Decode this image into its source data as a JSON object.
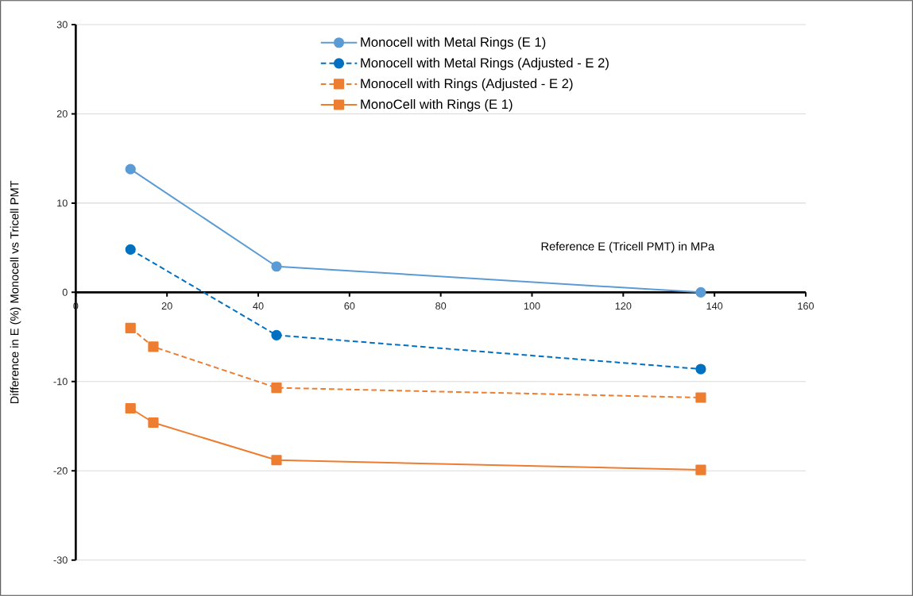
{
  "chart_data": {
    "type": "line",
    "xlabel": "Reference E (Tricell PMT) in MPa",
    "ylabel": "Difference in E (%) Monocell vs Tricell PMT",
    "xlim": [
      0,
      160
    ],
    "xticks": [
      0,
      20,
      40,
      60,
      80,
      100,
      120,
      140,
      160
    ],
    "ylim": [
      -30,
      30
    ],
    "yticks": [
      -30,
      -20,
      -10,
      0,
      10,
      20,
      30
    ],
    "grid": "y",
    "legend": "top",
    "series": [
      {
        "name": "Monocell with Metal Rings (E 1)",
        "color": "#5b9bd5",
        "marker": "circle",
        "line_style": "solid",
        "x": [
          12,
          44,
          137
        ],
        "values": [
          13.8,
          2.9,
          0
        ]
      },
      {
        "name": "Monocell with Metal Rings (Adjusted - E 2)",
        "color": "#0070c0",
        "marker": "circle",
        "line_style": "dashed",
        "x": [
          12,
          44,
          137
        ],
        "values": [
          4.8,
          -4.8,
          -8.6
        ]
      },
      {
        "name": "Monocell with Rings (Adjusted - E 2)",
        "color": "#ed7d31",
        "marker": "square",
        "line_style": "dashed",
        "x": [
          12,
          17,
          44,
          137
        ],
        "values": [
          -4.0,
          -6.1,
          -10.7,
          -11.8
        ]
      },
      {
        "name": "MonoCell with Rings (E 1)",
        "color": "#ed7d31",
        "marker": "square",
        "line_style": "solid",
        "x": [
          12,
          17,
          44,
          137
        ],
        "values": [
          -13.0,
          -14.6,
          -18.8,
          -19.9
        ]
      }
    ]
  }
}
